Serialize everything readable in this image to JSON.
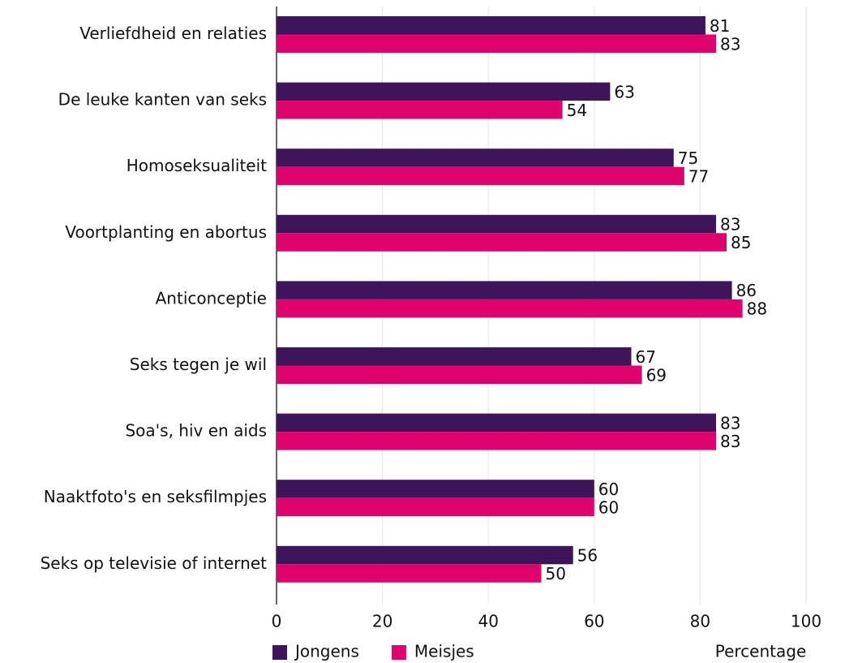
{
  "chart_data": {
    "type": "bar",
    "orientation": "horizontal",
    "categories": [
      "Verliefdheid en relaties",
      "De leuke kanten van seks",
      "Homoseksualiteit",
      "Voortplanting en abortus",
      "Anticonceptie",
      "Seks tegen je wil",
      "Soa's, hiv en aids",
      "Naaktfoto's en seksfilmpjes",
      "Seks op televisie of internet"
    ],
    "series": [
      {
        "name": "Jongens",
        "color": "#3d1659",
        "values": [
          81,
          63,
          75,
          83,
          86,
          67,
          83,
          60,
          56
        ]
      },
      {
        "name": "Meisjes",
        "color": "#e0006e",
        "values": [
          83,
          54,
          77,
          85,
          88,
          69,
          83,
          60,
          50
        ]
      }
    ],
    "x_label": "Percentage",
    "xlim": [
      0,
      100
    ],
    "xticks": [
      0,
      20,
      40,
      60,
      80,
      100
    ],
    "grid": true,
    "legend": "bottom-left",
    "value_label_color": "#4a1d6b"
  }
}
